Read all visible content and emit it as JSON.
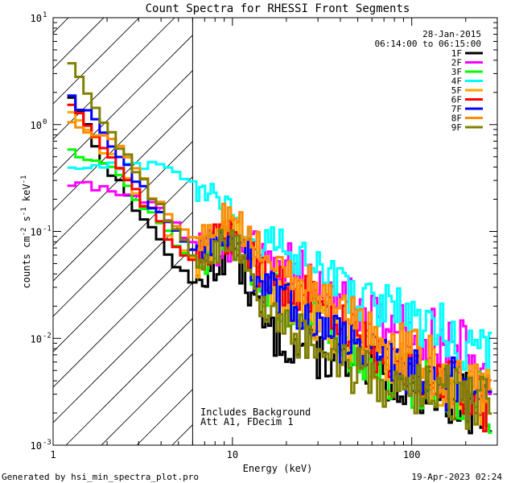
{
  "chart_data": {
    "type": "line",
    "title": "Count Spectra for RHESSI Front Segments",
    "xlabel": "Energy (keV)",
    "ylabel": {
      "base": "counts cm",
      "sup1": "-2",
      "mid1": " s",
      "sup2": "-1",
      "mid2": " keV",
      "sup3": "-1"
    },
    "xscale": "log",
    "yscale": "log",
    "xlim": [
      1,
      300
    ],
    "ylim": [
      0.001,
      10
    ],
    "x_ticks": [
      {
        "value": 1,
        "label": "1"
      },
      {
        "value": 10,
        "label": "10"
      },
      {
        "value": 100,
        "label": "100"
      }
    ],
    "y_ticks": [
      {
        "value": 0.001,
        "base": "10",
        "exp": "-3"
      },
      {
        "value": 0.01,
        "base": "10",
        "exp": "-2"
      },
      {
        "value": 0.1,
        "base": "10",
        "exp": "-1"
      },
      {
        "value": 1,
        "base": "10",
        "exp": "0"
      },
      {
        "value": 10,
        "base": "10",
        "exp": "1"
      }
    ],
    "date": "28-Jan-2015",
    "time_range": "06:14:00 to 06:15:00",
    "hatched_region_upper_keV": 6,
    "annotations": [
      "Includes Background",
      "Att A1, FDecim 1"
    ],
    "series": [
      {
        "name": "1F",
        "color": "#000000",
        "points": [
          [
            1.2,
            1.9
          ],
          [
            2.0,
            0.35
          ],
          [
            3.0,
            0.14
          ],
          [
            4.0,
            0.07
          ],
          [
            5.0,
            0.04
          ],
          [
            6.0,
            0.03
          ],
          [
            8.0,
            0.05
          ],
          [
            10.0,
            0.08
          ],
          [
            12.0,
            0.03
          ],
          [
            15.0,
            0.012
          ],
          [
            20.0,
            0.009
          ],
          [
            30.0,
            0.007
          ],
          [
            40.0,
            0.006
          ],
          [
            50.0,
            0.005
          ],
          [
            70.0,
            0.0045
          ],
          [
            100.0,
            0.004
          ],
          [
            150.0,
            0.003
          ],
          [
            200.0,
            0.0025
          ],
          [
            280.0,
            0.002
          ]
        ]
      },
      {
        "name": "2F",
        "color": "#ff00ff",
        "points": [
          [
            1.2,
            0.28
          ],
          [
            2.0,
            0.24
          ],
          [
            3.0,
            0.2
          ],
          [
            4.0,
            0.15
          ],
          [
            5.0,
            0.1
          ],
          [
            6.0,
            0.07
          ],
          [
            8.0,
            0.07
          ],
          [
            10.0,
            0.08
          ],
          [
            15.0,
            0.06
          ],
          [
            20.0,
            0.05
          ],
          [
            30.0,
            0.03
          ],
          [
            40.0,
            0.025
          ],
          [
            50.0,
            0.02
          ],
          [
            70.0,
            0.015
          ],
          [
            100.0,
            0.012
          ],
          [
            150.0,
            0.01
          ],
          [
            200.0,
            0.007
          ],
          [
            280.0,
            0.005
          ]
        ]
      },
      {
        "name": "3F",
        "color": "#00ff00",
        "points": [
          [
            1.2,
            0.6
          ],
          [
            2.0,
            0.4
          ],
          [
            3.0,
            0.18
          ],
          [
            4.0,
            0.1
          ],
          [
            5.0,
            0.07
          ],
          [
            6.0,
            0.05
          ],
          [
            8.0,
            0.07
          ],
          [
            10.0,
            0.08
          ],
          [
            15.0,
            0.03
          ],
          [
            20.0,
            0.02
          ],
          [
            30.0,
            0.015
          ],
          [
            40.0,
            0.01
          ],
          [
            50.0,
            0.007
          ],
          [
            70.0,
            0.005
          ],
          [
            100.0,
            0.004
          ],
          [
            150.0,
            0.0035
          ],
          [
            200.0,
            0.003
          ],
          [
            280.0,
            0.0025
          ]
        ]
      },
      {
        "name": "4F",
        "color": "#00ffff",
        "points": [
          [
            1.2,
            0.4
          ],
          [
            2.0,
            0.42
          ],
          [
            3.0,
            0.42
          ],
          [
            4.0,
            0.4
          ],
          [
            5.0,
            0.33
          ],
          [
            6.0,
            0.27
          ],
          [
            8.0,
            0.17
          ],
          [
            10.0,
            0.12
          ],
          [
            15.0,
            0.08
          ],
          [
            20.0,
            0.06
          ],
          [
            30.0,
            0.04
          ],
          [
            40.0,
            0.03
          ],
          [
            50.0,
            0.025
          ],
          [
            70.0,
            0.02
          ],
          [
            100.0,
            0.015
          ],
          [
            150.0,
            0.012
          ],
          [
            200.0,
            0.009
          ],
          [
            280.0,
            0.006
          ]
        ]
      },
      {
        "name": "5F",
        "color": "#ffa500",
        "points": [
          [
            1.2,
            1.3
          ],
          [
            2.0,
            0.5
          ],
          [
            3.0,
            0.2
          ],
          [
            4.0,
            0.1
          ],
          [
            5.0,
            0.07
          ],
          [
            6.0,
            0.05
          ],
          [
            8.0,
            0.09
          ],
          [
            10.0,
            0.1
          ],
          [
            15.0,
            0.03
          ],
          [
            20.0,
            0.02
          ],
          [
            30.0,
            0.015
          ],
          [
            40.0,
            0.01
          ],
          [
            50.0,
            0.008
          ],
          [
            70.0,
            0.006
          ],
          [
            100.0,
            0.005
          ],
          [
            150.0,
            0.004
          ],
          [
            200.0,
            0.003
          ],
          [
            280.0,
            0.0025
          ]
        ]
      },
      {
        "name": "6F",
        "color": "#ff0000",
        "points": [
          [
            1.2,
            1.5
          ],
          [
            2.0,
            0.45
          ],
          [
            3.0,
            0.2
          ],
          [
            4.0,
            0.1
          ],
          [
            5.0,
            0.06
          ],
          [
            6.0,
            0.05
          ],
          [
            8.0,
            0.08
          ],
          [
            10.0,
            0.09
          ],
          [
            15.0,
            0.04
          ],
          [
            20.0,
            0.03
          ],
          [
            30.0,
            0.02
          ],
          [
            40.0,
            0.015
          ],
          [
            50.0,
            0.01
          ],
          [
            70.0,
            0.007
          ],
          [
            100.0,
            0.005
          ],
          [
            150.0,
            0.004
          ],
          [
            200.0,
            0.003
          ],
          [
            280.0,
            0.0022
          ]
        ]
      },
      {
        "name": "7F",
        "color": "#0000ff",
        "points": [
          [
            1.2,
            1.8
          ],
          [
            2.0,
            0.7
          ],
          [
            3.0,
            0.25
          ],
          [
            4.0,
            0.12
          ],
          [
            5.0,
            0.08
          ],
          [
            6.0,
            0.06
          ],
          [
            8.0,
            0.09
          ],
          [
            10.0,
            0.1
          ],
          [
            15.0,
            0.03
          ],
          [
            20.0,
            0.02
          ],
          [
            30.0,
            0.015
          ],
          [
            40.0,
            0.01
          ],
          [
            50.0,
            0.008
          ],
          [
            70.0,
            0.006
          ],
          [
            100.0,
            0.005
          ],
          [
            150.0,
            0.004
          ],
          [
            200.0,
            0.003
          ],
          [
            280.0,
            0.0025
          ]
        ]
      },
      {
        "name": "8F",
        "color": "#ff8c00",
        "points": [
          [
            1.2,
            1.0
          ],
          [
            2.0,
            0.8
          ],
          [
            3.0,
            0.3
          ],
          [
            4.0,
            0.15
          ],
          [
            5.0,
            0.1
          ],
          [
            6.0,
            0.08
          ],
          [
            8.0,
            0.13
          ],
          [
            10.0,
            0.12
          ],
          [
            15.0,
            0.06
          ],
          [
            20.0,
            0.04
          ],
          [
            30.0,
            0.025
          ],
          [
            40.0,
            0.018
          ],
          [
            50.0,
            0.013
          ],
          [
            70.0,
            0.009
          ],
          [
            100.0,
            0.007
          ],
          [
            150.0,
            0.005
          ],
          [
            200.0,
            0.0035
          ],
          [
            280.0,
            0.003
          ]
        ]
      },
      {
        "name": "9F",
        "color": "#808000",
        "points": [
          [
            1.2,
            3.5
          ],
          [
            2.0,
            0.9
          ],
          [
            3.0,
            0.3
          ],
          [
            4.0,
            0.14
          ],
          [
            5.0,
            0.08
          ],
          [
            6.0,
            0.05
          ],
          [
            8.0,
            0.07
          ],
          [
            10.0,
            0.08
          ],
          [
            15.0,
            0.02
          ],
          [
            20.0,
            0.012
          ],
          [
            30.0,
            0.008
          ],
          [
            40.0,
            0.006
          ],
          [
            50.0,
            0.005
          ],
          [
            70.0,
            0.004
          ],
          [
            100.0,
            0.0035
          ],
          [
            150.0,
            0.003
          ],
          [
            200.0,
            0.0025
          ],
          [
            280.0,
            0.002
          ]
        ]
      }
    ]
  },
  "footer": {
    "generated_by": "Generated by hsi_min_spectra_plot.pro",
    "timestamp": "19-Apr-2023 02:24"
  }
}
